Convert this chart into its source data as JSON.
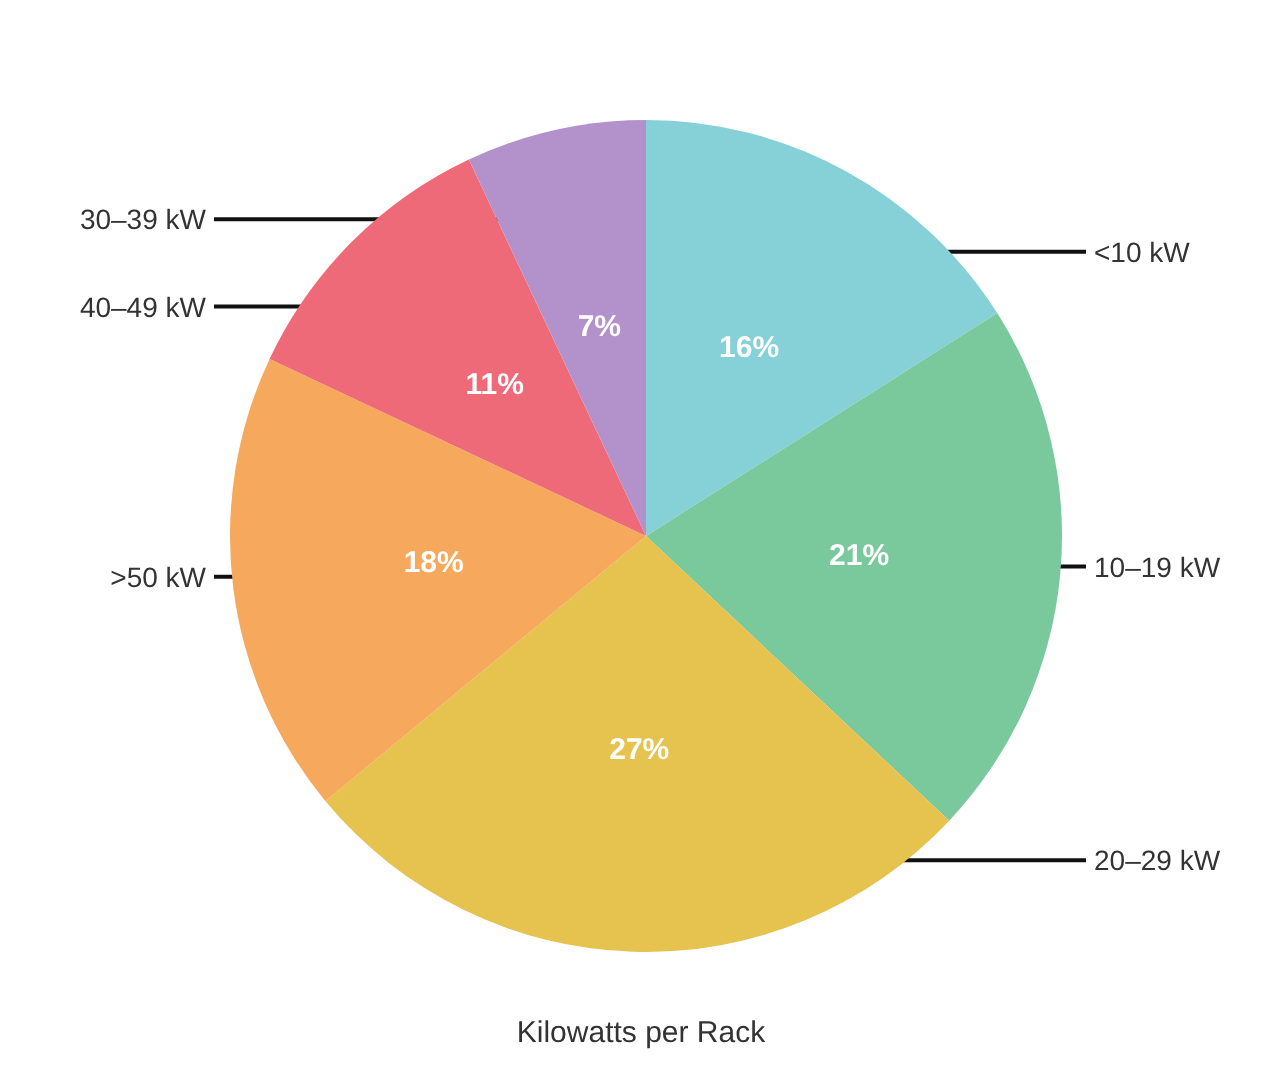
{
  "chart_data": {
    "type": "pie",
    "title": "Kilowatts per Rack",
    "categories": [
      "<10 kW",
      "10–19 kW",
      "20–29 kW",
      ">50 kW",
      "40–49 kW",
      "30–39 kW"
    ],
    "values": [
      16,
      21,
      27,
      18,
      11,
      7
    ],
    "value_labels": [
      "16%",
      "21%",
      "27%",
      "18%",
      "11%",
      "7%"
    ],
    "colors": [
      "#86d0d8",
      "#7ac99c",
      "#e6c24e",
      "#f6a95c",
      "#ef6a78",
      "#b392cc"
    ]
  }
}
